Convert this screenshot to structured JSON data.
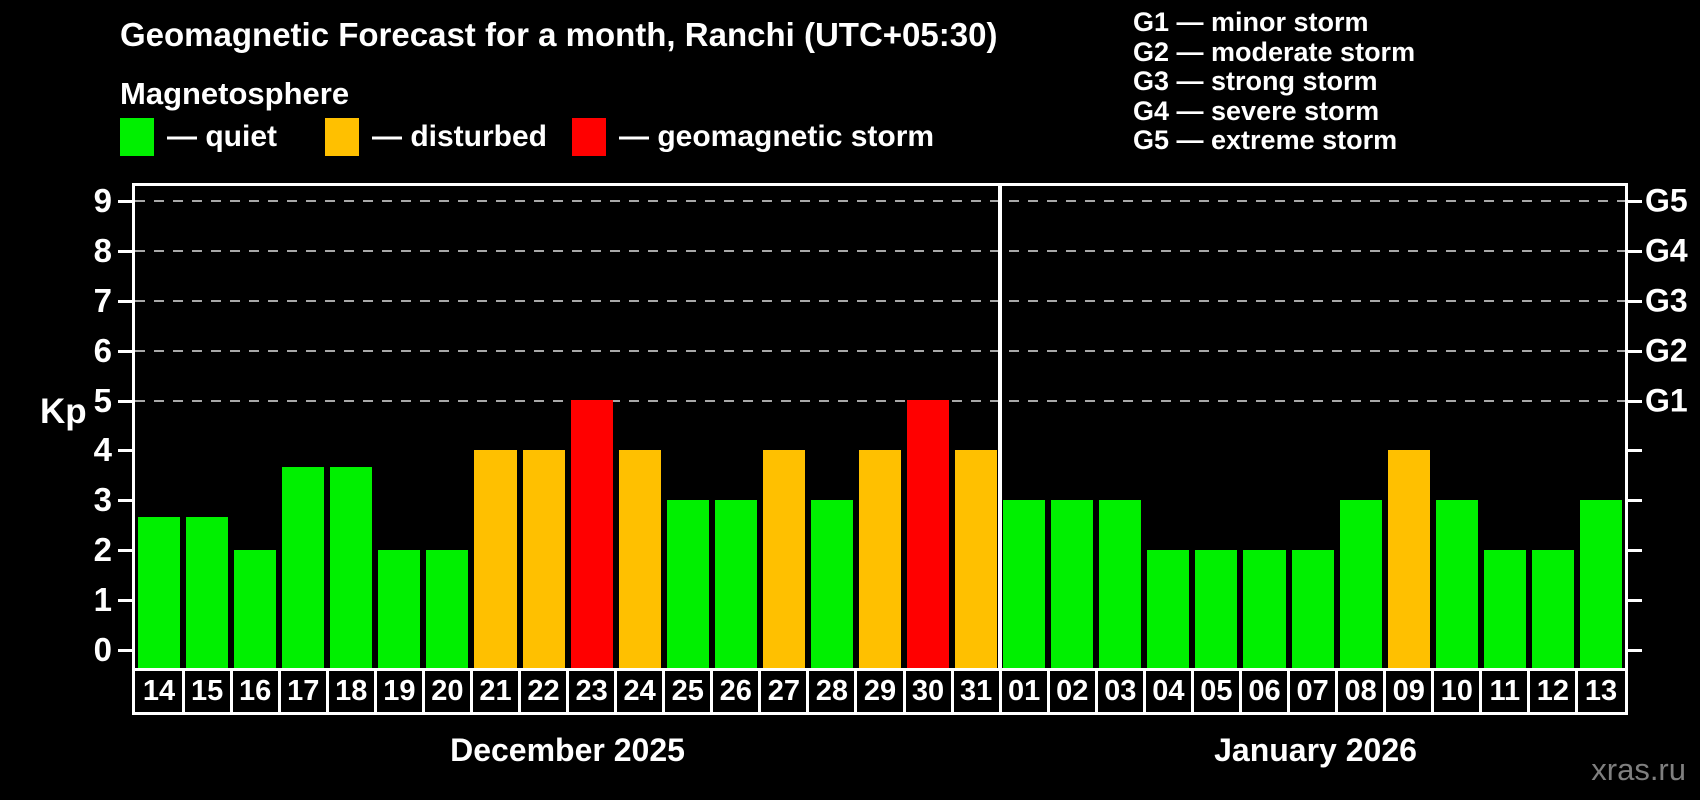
{
  "subtitle": "Magnetosphere",
  "watermark": "xras.ru",
  "legend": {
    "items": [
      {
        "key": "quiet",
        "label": "— quiet",
        "color": "#00f000"
      },
      {
        "key": "disturbed",
        "label": "— disturbed",
        "color": "#ffc000"
      },
      {
        "key": "storm",
        "label": "— geomagnetic storm",
        "color": "#ff0000"
      }
    ]
  },
  "g_legend": [
    "G1 — minor storm",
    "G2 — moderate storm",
    "G3 — strong storm",
    "G4 — severe storm",
    "G5 — extreme storm"
  ],
  "chart_data": {
    "type": "bar",
    "title": "Geomagnetic Forecast for a month, Ranchi (UTC+05:30)",
    "ylabel": "Kp",
    "ylim": [
      0,
      9
    ],
    "y_ticks": [
      0,
      1,
      2,
      3,
      4,
      5,
      6,
      7,
      8,
      9
    ],
    "gridlines_at": [
      5,
      6,
      7,
      8,
      9
    ],
    "grid": "dashed-gray-on-G-levels-only",
    "legend_position": "top-left",
    "g_labels": [
      {
        "kp": 5,
        "label": "G1"
      },
      {
        "kp": 6,
        "label": "G2"
      },
      {
        "kp": 7,
        "label": "G3"
      },
      {
        "kp": 8,
        "label": "G4"
      },
      {
        "kp": 9,
        "label": "G5"
      }
    ],
    "bar_colors": {
      "quiet": "#00f000",
      "disturbed": "#ffc000",
      "storm": "#ff0000"
    },
    "groups": [
      {
        "label": "December 2025",
        "days": [
          {
            "day": "14",
            "kp": 2.67,
            "status": "quiet"
          },
          {
            "day": "15",
            "kp": 2.67,
            "status": "quiet"
          },
          {
            "day": "16",
            "kp": 2,
            "status": "quiet"
          },
          {
            "day": "17",
            "kp": 3.67,
            "status": "quiet"
          },
          {
            "day": "18",
            "kp": 3.67,
            "status": "quiet"
          },
          {
            "day": "19",
            "kp": 2,
            "status": "quiet"
          },
          {
            "day": "20",
            "kp": 2,
            "status": "quiet"
          },
          {
            "day": "21",
            "kp": 4,
            "status": "disturbed"
          },
          {
            "day": "22",
            "kp": 4,
            "status": "disturbed"
          },
          {
            "day": "23",
            "kp": 5,
            "status": "storm"
          },
          {
            "day": "24",
            "kp": 4,
            "status": "disturbed"
          },
          {
            "day": "25",
            "kp": 3,
            "status": "quiet"
          },
          {
            "day": "26",
            "kp": 3,
            "status": "quiet"
          },
          {
            "day": "27",
            "kp": 4,
            "status": "disturbed"
          },
          {
            "day": "28",
            "kp": 3,
            "status": "quiet"
          },
          {
            "day": "29",
            "kp": 4,
            "status": "disturbed"
          },
          {
            "day": "30",
            "kp": 5,
            "status": "storm"
          },
          {
            "day": "31",
            "kp": 4,
            "status": "disturbed"
          }
        ]
      },
      {
        "label": "January 2026",
        "days": [
          {
            "day": "01",
            "kp": 3,
            "status": "quiet"
          },
          {
            "day": "02",
            "kp": 3,
            "status": "quiet"
          },
          {
            "day": "03",
            "kp": 3,
            "status": "quiet"
          },
          {
            "day": "04",
            "kp": 2,
            "status": "quiet"
          },
          {
            "day": "05",
            "kp": 2,
            "status": "quiet"
          },
          {
            "day": "06",
            "kp": 2,
            "status": "quiet"
          },
          {
            "day": "07",
            "kp": 2,
            "status": "quiet"
          },
          {
            "day": "08",
            "kp": 3,
            "status": "quiet"
          },
          {
            "day": "09",
            "kp": 4,
            "status": "disturbed"
          },
          {
            "day": "10",
            "kp": 3,
            "status": "quiet"
          },
          {
            "day": "11",
            "kp": 2,
            "status": "quiet"
          },
          {
            "day": "12",
            "kp": 2,
            "status": "quiet"
          },
          {
            "day": "13",
            "kp": 3,
            "status": "quiet"
          }
        ]
      }
    ]
  }
}
